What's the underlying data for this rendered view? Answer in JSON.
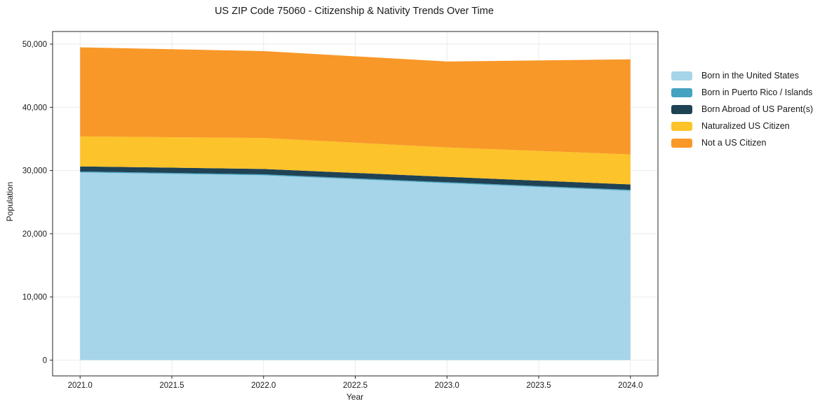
{
  "title": "US ZIP Code 75060 - Citizenship & Nativity Trends Over Time",
  "chart_data": {
    "type": "area",
    "stacked": true,
    "title": "US ZIP Code 75060 - Citizenship & Nativity Trends Over Time",
    "xlabel": "Year",
    "ylabel": "Population",
    "x": [
      2021,
      2022,
      2023,
      2024
    ],
    "series": [
      {
        "name": "Born in the United States",
        "color": "#a6d4e8",
        "values": [
          29700,
          29250,
          28000,
          26800
        ]
      },
      {
        "name": "Born in Puerto Rico / Islands",
        "color": "#45a2c0",
        "values": [
          150,
          150,
          150,
          150
        ]
      },
      {
        "name": "Born Abroad of US Parent(s)",
        "color": "#1f4254",
        "values": [
          800,
          850,
          850,
          850
        ]
      },
      {
        "name": "Naturalized US Citizen",
        "color": "#fdc32a",
        "values": [
          4750,
          4900,
          4650,
          4750
        ]
      },
      {
        "name": "Not a US Citizen",
        "color": "#f89828",
        "values": [
          14100,
          13750,
          13600,
          15050
        ]
      }
    ],
    "totals": [
      49500,
      48900,
      47250,
      47600
    ],
    "xlim": [
      2020.85,
      2024.15
    ],
    "ylim": [
      -2500,
      52000
    ],
    "xticks": [
      "2021.0",
      "2021.5",
      "2022.0",
      "2022.5",
      "2023.0",
      "2023.5",
      "2024.0"
    ],
    "yticks": [
      "0",
      "10,000",
      "20,000",
      "30,000",
      "40,000",
      "50,000"
    ],
    "grid": true,
    "legend_position": "right",
    "colors": {
      "grid": "#ebebeb",
      "frame": "#262626",
      "text": "#1a1a1a",
      "background": "#ffffff"
    }
  }
}
